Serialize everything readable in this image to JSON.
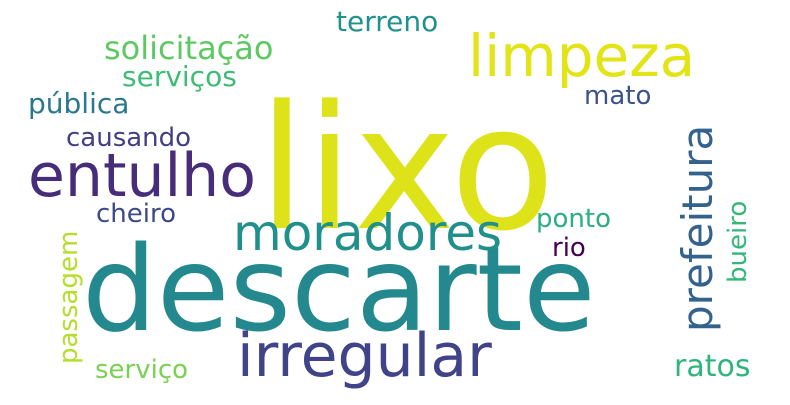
{
  "words": [
    {
      "text": "lixo",
      "color": "#dde318"
    },
    {
      "text": "descarte",
      "color": "#23898e"
    },
    {
      "text": "irregular",
      "color": "#404387"
    },
    {
      "text": "entulho",
      "color": "#472c7a"
    },
    {
      "text": "limpeza",
      "color": "#e2e418"
    },
    {
      "text": "moradores",
      "color": "#21908d"
    },
    {
      "text": "prefeitura",
      "color": "#33638d"
    },
    {
      "text": "solicitação",
      "color": "#5ec962"
    },
    {
      "text": "serviços",
      "color": "#3dbc74"
    },
    {
      "text": "terreno",
      "color": "#20928c"
    },
    {
      "text": "pública",
      "color": "#2a788e"
    },
    {
      "text": "causando",
      "color": "#433e85"
    },
    {
      "text": "mato",
      "color": "#3b528b"
    },
    {
      "text": "cheiro",
      "color": "#3e4989"
    },
    {
      "text": "ponto",
      "color": "#2ab07f"
    },
    {
      "text": "rio",
      "color": "#440154"
    },
    {
      "text": "bueiro",
      "color": "#35b779"
    },
    {
      "text": "passagem",
      "color": "#b5de2b"
    },
    {
      "text": "serviço",
      "color": "#7ad151"
    },
    {
      "text": "ratos",
      "color": "#2fb47c"
    }
  ]
}
